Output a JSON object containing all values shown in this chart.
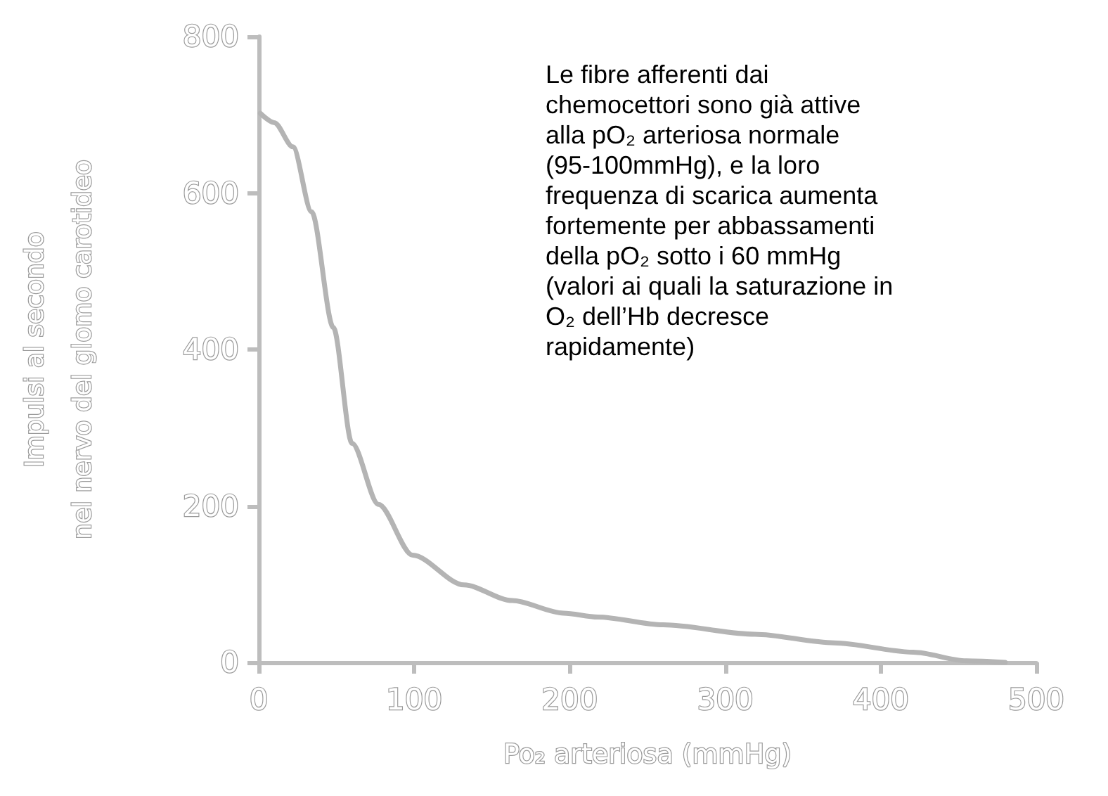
{
  "chart_data": {
    "type": "line",
    "xlabel": "Po₂ arteriosa (mmHg)",
    "ylabel": "Impulsi al secondo\nnel nervo del glomo carotideo",
    "annotations": [
      "Le fibre afferenti dai chemocettori sono già attive alla pO₂ arteriosa normale (95-100mmHg), e la loro frequenza di scarica aumenta fortemente per abbassamenti della pO₂ sotto i 60 mmHg (valori ai quali la saturazione in O₂ dell’Hb decresce rapidamente)"
    ],
    "series": [
      {
        "color": "#b4b4b4",
        "x": [
          1,
          10,
          22,
          34,
          48,
          60,
          77,
          99,
          132,
          163,
          196,
          218,
          260,
          319,
          370,
          421,
          455,
          480
        ],
        "values": [
          702,
          690,
          659,
          576,
          428,
          280,
          202,
          137,
          99,
          79,
          63,
          58,
          48,
          36,
          25,
          13,
          2,
          0
        ]
      }
    ],
    "xlim": [
      0,
      500
    ],
    "xticks": [
      0,
      100,
      200,
      300,
      400,
      500
    ],
    "ylim": [
      0,
      800
    ],
    "yticks": [
      0,
      200,
      400,
      600,
      800
    ],
    "marker": "none",
    "line_style": "solid"
  }
}
